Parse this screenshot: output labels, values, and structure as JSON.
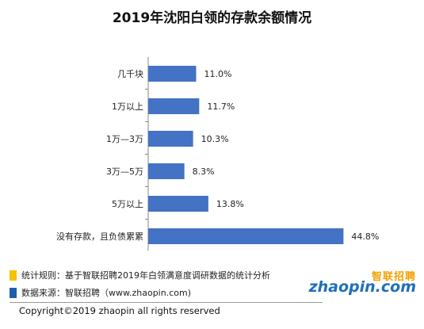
{
  "title": "2019年沈阳白领的存款余额情况",
  "chart_data": {
    "type": "bar",
    "orientation": "horizontal",
    "title": "2019年沈阳白领的存款余额情况",
    "categories": [
      "几千块",
      "1万以上",
      "1万—3万",
      "3万—5万",
      "5万以上",
      "没有存款，且负债累累"
    ],
    "values": [
      11.0,
      11.7,
      10.3,
      8.3,
      13.8,
      44.8
    ],
    "value_labels": [
      "11.0%",
      "11.7%",
      "10.3%",
      "8.3%",
      "13.8%",
      "44.8%"
    ],
    "unit": "%",
    "xlim": [
      0,
      50
    ],
    "grid": false,
    "bar_color": "#4472C4"
  },
  "notes": [
    {
      "text": "统计规则：基于智联招聘2019年白领满意度调研数据的统计分析",
      "color": "#F5C200"
    },
    {
      "text": "数据来源：智联招聘（www.zhaopin.com)",
      "color": "#1F5FAF"
    }
  ],
  "logo": {
    "cn": "智联招聘",
    "en": "zhaopin.com"
  },
  "copyright": "Copyright©2019 zhaopin all rights reserved"
}
